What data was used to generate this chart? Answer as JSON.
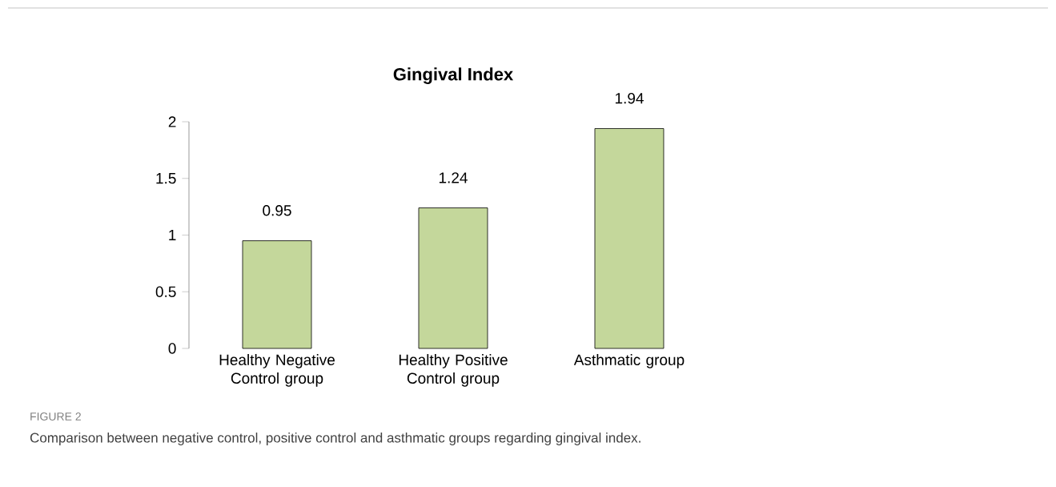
{
  "chart_data": {
    "type": "bar",
    "title": "Gingival Index",
    "categories": [
      "Healthy Negative Control group",
      "Healthy Positive Control group",
      "Asthmatic group"
    ],
    "values": [
      0.95,
      1.24,
      1.94
    ],
    "color": "#c4d79b",
    "data_labels": true,
    "ylim": [
      0,
      2
    ],
    "yticks": [
      0,
      0.5,
      1,
      1.5,
      2
    ],
    "annotations": [
      "FIGURE 2",
      "Comparison between negative control, positive control and asthmatic groups regarding gingival index."
    ]
  }
}
